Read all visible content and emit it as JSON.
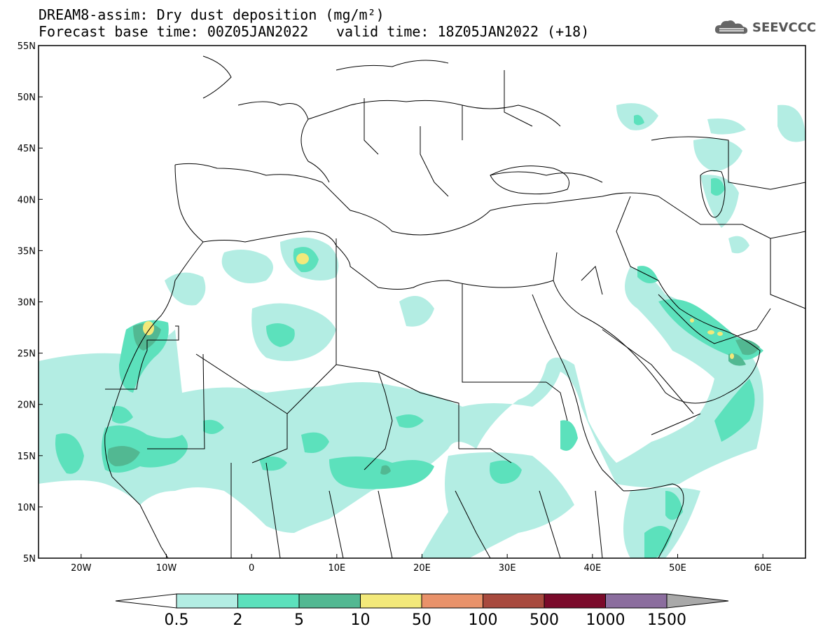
{
  "header": {
    "title_line1": "DREAM8-assim: Dry dust deposition (mg/m²)",
    "title_line2": "Forecast base time: 00Z05JAN2022",
    "valid_time": "valid time: 18Z05JAN2022 (+18)",
    "logo_text": "SEEVCCC",
    "logo_icon": "cloud-icon"
  },
  "map": {
    "lon_range": [
      -25,
      65
    ],
    "lat_range": [
      5,
      55
    ],
    "lon_ticks": [
      {
        "value": -20,
        "label": "20W"
      },
      {
        "value": -10,
        "label": "10W"
      },
      {
        "value": 0,
        "label": "0"
      },
      {
        "value": 10,
        "label": "10E"
      },
      {
        "value": 20,
        "label": "20E"
      },
      {
        "value": 30,
        "label": "30E"
      },
      {
        "value": 40,
        "label": "40E"
      },
      {
        "value": 50,
        "label": "50E"
      },
      {
        "value": 60,
        "label": "60E"
      }
    ],
    "lat_ticks": [
      {
        "value": 55,
        "label": "55N"
      },
      {
        "value": 50,
        "label": "50N"
      },
      {
        "value": 45,
        "label": "45N"
      },
      {
        "value": 40,
        "label": "40N"
      },
      {
        "value": 35,
        "label": "35N"
      },
      {
        "value": 30,
        "label": "30N"
      },
      {
        "value": 25,
        "label": "25N"
      },
      {
        "value": 20,
        "label": "20N"
      },
      {
        "value": 15,
        "label": "15N"
      },
      {
        "value": 10,
        "label": "10N"
      },
      {
        "value": 5,
        "label": "5N"
      }
    ]
  },
  "colorbar": {
    "levels": [
      "0.5",
      "2",
      "5",
      "10",
      "50",
      "100",
      "500",
      "1000",
      "1500"
    ],
    "colors": {
      "under": "#ffffff",
      "bins": [
        "#b3ede3",
        "#5ce1bc",
        "#52b892",
        "#f3e97a",
        "#e9926a",
        "#a84a3e",
        "#7a0a2a",
        "#8b6d9e"
      ],
      "over": "#a9a9a9"
    }
  },
  "colors": {
    "level1": "#b3ede3",
    "level2": "#5ce1bc",
    "level3": "#52b892",
    "level4": "#f3e97a",
    "border": "#000000"
  }
}
